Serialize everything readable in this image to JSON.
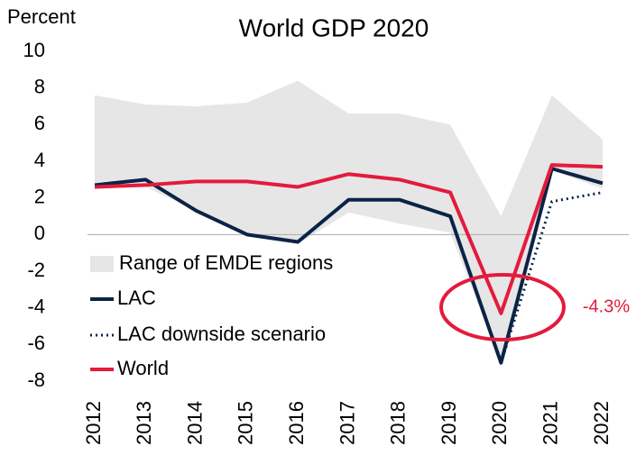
{
  "chart_data": {
    "type": "line",
    "title": "World GDP 2020",
    "y_label": "Percent",
    "categories": [
      "2012",
      "2013",
      "2014",
      "2015",
      "2016",
      "2017",
      "2018",
      "2019",
      "2020",
      "2021",
      "2022"
    ],
    "range": {
      "name": "Range of EMDE regions",
      "color": "#e6e6e6",
      "low": [
        2.5,
        2.6,
        1.3,
        -0.1,
        -0.5,
        1.2,
        0.6,
        0.1,
        -7.0,
        3.5,
        2.5
      ],
      "high": [
        7.6,
        7.1,
        7.0,
        7.2,
        8.4,
        6.6,
        6.6,
        6.0,
        1.0,
        7.6,
        5.2
      ]
    },
    "series": [
      {
        "name": "LAC",
        "color": "#0b2346",
        "dash": false,
        "values": [
          2.7,
          3.0,
          1.3,
          0.0,
          -0.4,
          1.9,
          1.9,
          1.0,
          -7.0,
          3.6,
          2.8
        ]
      },
      {
        "name": "LAC downside scenario",
        "color": "#0b2346",
        "dash": true,
        "values": [
          null,
          null,
          null,
          null,
          null,
          null,
          null,
          null,
          -7.0,
          1.8,
          2.3
        ]
      },
      {
        "name": "World",
        "color": "#e31b3c",
        "dash": false,
        "values": [
          2.6,
          2.7,
          2.9,
          2.9,
          2.6,
          3.3,
          3.0,
          2.3,
          -4.3,
          3.8,
          3.7
        ]
      }
    ],
    "annotation": "-4.3%",
    "ylim": [
      -8,
      10
    ],
    "yticks": [
      -8,
      -6,
      -4,
      -2,
      0,
      2,
      4,
      6,
      8,
      10
    ]
  }
}
